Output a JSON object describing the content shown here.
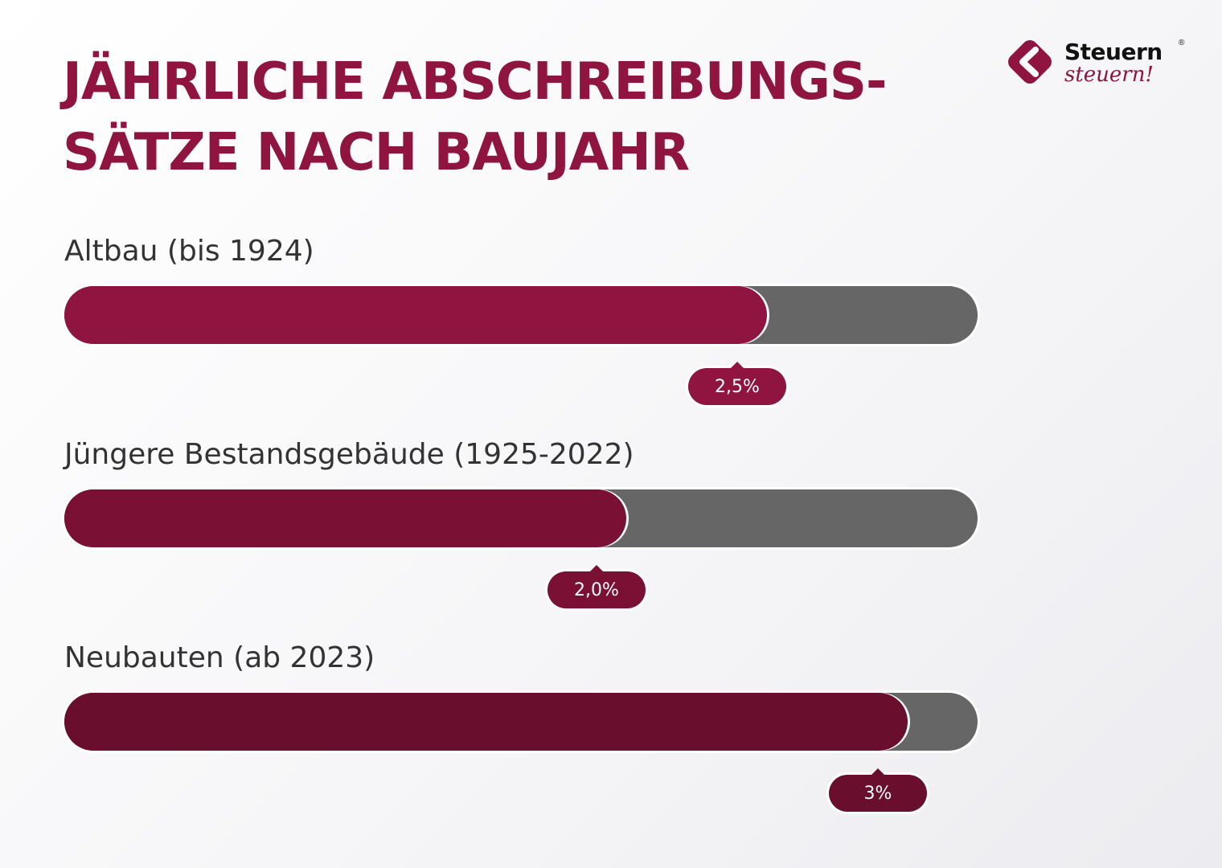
{
  "title": {
    "line1": "JÄHRLICHE ABSCHREIBUNGS-",
    "line2": "SÄTZE NACH BAUJAHR"
  },
  "logo": {
    "word1": "Steuern",
    "word2": "steuern!",
    "reg": "®"
  },
  "colors": {
    "brand": "#8f1540",
    "track": "#666666"
  },
  "chart_data": {
    "type": "bar",
    "orientation": "horizontal",
    "title": "JÄHRLICHE ABSCHREIBUNGS-SÄTZE NACH BAUJAHR",
    "categories": [
      "Altbau (bis 1924)",
      "Jüngere Bestandsgebäude (1925-2022)",
      "Neubauten (ab 2023)"
    ],
    "values": [
      2.5,
      2.0,
      3.0
    ],
    "value_labels": [
      "2,5%",
      "2,0%",
      "3%"
    ],
    "unit": "%",
    "xlim": [
      0,
      3.25
    ],
    "colors": [
      "#8f1540",
      "#7a1034",
      "#6a0e2e"
    ],
    "grid": false,
    "legend": false
  }
}
